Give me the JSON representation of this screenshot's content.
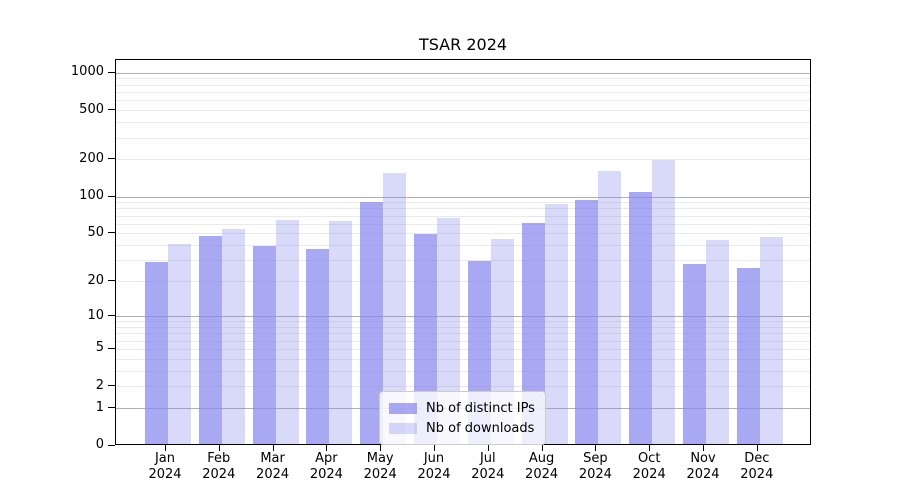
{
  "figure": {
    "background": "#ffffff"
  },
  "chart_data": {
    "type": "bar",
    "title": "TSAR 2024",
    "categories": [
      "Jan",
      "Feb",
      "Mar",
      "Apr",
      "May",
      "Jun",
      "Jul",
      "Aug",
      "Sep",
      "Oct",
      "Nov",
      "Dec"
    ],
    "x_tick_year_line": "2024",
    "series": [
      {
        "name": "Nb of distinct IPs",
        "color": "rgba(136,136,238,0.72)",
        "rendered_hex": "#aaaaf0",
        "values": [
          28,
          46,
          38,
          36,
          88,
          48,
          29,
          59,
          91,
          106,
          27,
          25
        ]
      },
      {
        "name": "Nb of downloads",
        "color": "rgba(136,136,238,0.32)",
        "rendered_hex": "#dadaf8",
        "values": [
          40,
          53,
          63,
          61,
          150,
          65,
          44,
          84,
          158,
          193,
          43,
          45
        ]
      }
    ],
    "y_axis": {
      "scale": "log1p",
      "ylim": [
        0,
        1280
      ],
      "tick_values": [
        0,
        1,
        2,
        5,
        10,
        20,
        50,
        100,
        200,
        500,
        1000
      ],
      "major_grid_values": [
        1,
        10,
        100,
        1000
      ],
      "minor_grid_values": [
        2,
        3,
        4,
        5,
        6,
        7,
        8,
        9,
        20,
        30,
        40,
        50,
        60,
        70,
        80,
        90,
        200,
        300,
        400,
        500,
        600,
        700,
        800,
        900
      ]
    },
    "legend": {
      "position": "lower center",
      "entries": [
        "Nb of distinct IPs",
        "Nb of downloads"
      ]
    },
    "colors": {
      "bar_base": "#8888ee",
      "grid_major": "#b0b0b0",
      "grid_minor": "#e9e9e9",
      "axis": "#000000",
      "text": "#000000"
    }
  }
}
